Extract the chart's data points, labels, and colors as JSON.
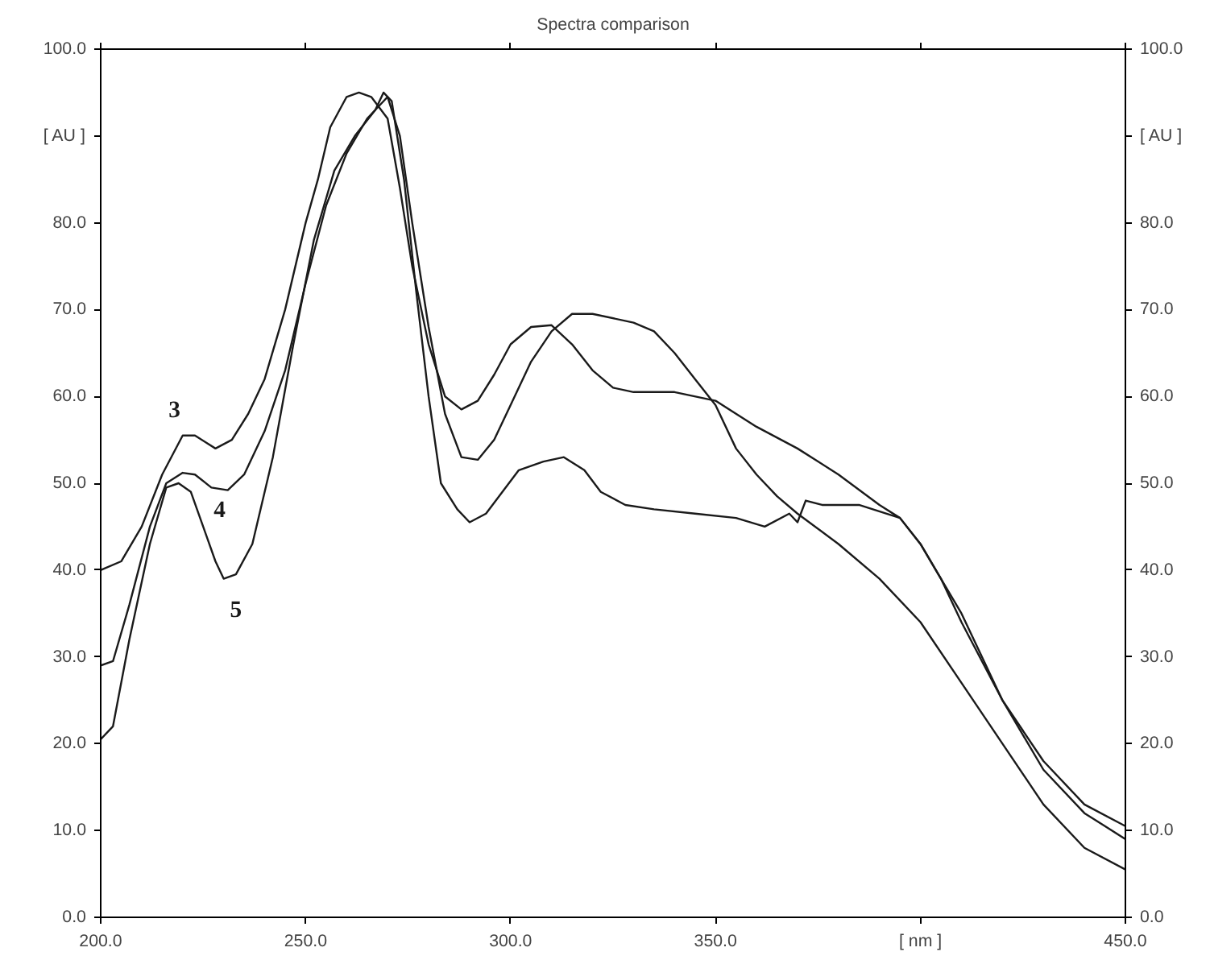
{
  "chart_data": {
    "type": "line",
    "title": "Spectra comparison",
    "xlim": [
      200,
      450
    ],
    "xticks": [
      {
        "value": 200,
        "label": "200.0"
      },
      {
        "value": 250,
        "label": "250.0"
      },
      {
        "value": 300,
        "label": "300.0"
      },
      {
        "value": 350,
        "label": "350.0"
      },
      {
        "value": 400,
        "label": "[ nm ]"
      },
      {
        "value": 450,
        "label": "450.0"
      }
    ],
    "ylim": [
      0,
      100
    ],
    "yticks": [
      {
        "value": 0,
        "label": "0.0"
      },
      {
        "value": 10,
        "label": "10.0"
      },
      {
        "value": 20,
        "label": "20.0"
      },
      {
        "value": 30,
        "label": "30.0"
      },
      {
        "value": 40,
        "label": "40.0"
      },
      {
        "value": 50,
        "label": "50.0"
      },
      {
        "value": 60,
        "label": "60.0"
      },
      {
        "value": 70,
        "label": "70.0"
      },
      {
        "value": 80,
        "label": "80.0"
      },
      {
        "value": 90,
        "label": "[ AU ]"
      },
      {
        "value": 100,
        "label": "100.0"
      }
    ],
    "y2lim": [
      0,
      100
    ],
    "y2ticks": [
      {
        "value": 0,
        "label": "0.0"
      },
      {
        "value": 10,
        "label": "10.0"
      },
      {
        "value": 20,
        "label": "20.0"
      },
      {
        "value": 30,
        "label": "30.0"
      },
      {
        "value": 40,
        "label": "40.0"
      },
      {
        "value": 50,
        "label": "50.0"
      },
      {
        "value": 60,
        "label": "60.0"
      },
      {
        "value": 70,
        "label": "70.0"
      },
      {
        "value": 80,
        "label": "80.0"
      },
      {
        "value": 90,
        "label": "[ AU ]"
      },
      {
        "value": 100,
        "label": "100.0"
      }
    ],
    "grid": false,
    "line_style": "solid",
    "series": [
      {
        "name": "3",
        "color": "#1a1a1a",
        "x": [
          200,
          205,
          210,
          215,
          220,
          223,
          228,
          232,
          236,
          240,
          245,
          250,
          253,
          256,
          260,
          263,
          266,
          270,
          273,
          276,
          280,
          284,
          288,
          292,
          296,
          300,
          305,
          310,
          315,
          320,
          325,
          330,
          340,
          350,
          360,
          370,
          380,
          390,
          395,
          400,
          405,
          410,
          420,
          430,
          440,
          450
        ],
        "values": [
          40,
          41,
          45,
          51,
          55.5,
          55.5,
          54,
          55,
          58,
          62,
          70,
          80,
          85,
          91,
          94.5,
          95,
          94.5,
          92,
          84,
          75,
          66,
          60,
          58.5,
          59.5,
          62.5,
          66,
          68,
          68.2,
          66,
          63,
          61,
          60.5,
          60.5,
          59.5,
          56.5,
          54,
          51,
          47.5,
          46,
          43,
          39,
          34,
          25,
          18,
          13,
          10.5
        ]
      },
      {
        "name": "4",
        "color": "#1a1a1a",
        "x": [
          200,
          203,
          207,
          212,
          216,
          220,
          223,
          227,
          231,
          235,
          240,
          245,
          250,
          255,
          260,
          265,
          270,
          273,
          276,
          280,
          284,
          288,
          292,
          296,
          300,
          305,
          310,
          315,
          320,
          330,
          335,
          340,
          345,
          350,
          355,
          360,
          365,
          370,
          380,
          390,
          400,
          410,
          420,
          430,
          440,
          450
        ],
        "values": [
          29,
          29.5,
          36,
          45,
          50,
          51.2,
          51,
          49.5,
          49.2,
          51,
          56,
          63,
          73,
          82,
          88,
          92,
          94.5,
          90,
          80,
          68,
          58,
          53,
          52.7,
          55,
          59,
          64,
          67.5,
          69.5,
          69.5,
          68.5,
          67.5,
          65,
          62,
          59,
          54,
          51,
          48.5,
          46.5,
          43,
          39,
          34,
          27,
          20,
          13,
          8,
          5.5
        ]
      },
      {
        "name": "5",
        "color": "#1a1a1a",
        "x": [
          200,
          203,
          207,
          212,
          216,
          219,
          222,
          225,
          228,
          230,
          233,
          237,
          242,
          247,
          252,
          257,
          262,
          267,
          269,
          271,
          274,
          277,
          280,
          283,
          287,
          290,
          294,
          298,
          302,
          308,
          313,
          318,
          322,
          328,
          335,
          345,
          355,
          362,
          368,
          370,
          372,
          376,
          385,
          395,
          400,
          405,
          410,
          420,
          430,
          440,
          445,
          450
        ],
        "values": [
          20.5,
          22,
          32,
          43,
          49.5,
          50,
          49,
          45,
          41,
          39,
          39.5,
          43,
          53,
          66,
          78,
          86,
          90,
          93,
          95,
          94,
          85,
          72,
          60,
          50,
          47,
          45.5,
          46.5,
          49,
          51.5,
          52.5,
          53,
          51.5,
          49,
          47.5,
          47,
          46.5,
          46,
          45,
          46.5,
          45.5,
          48,
          47.5,
          47.5,
          46,
          43,
          39,
          35,
          25,
          17,
          12,
          10.5,
          9
        ]
      }
    ]
  }
}
